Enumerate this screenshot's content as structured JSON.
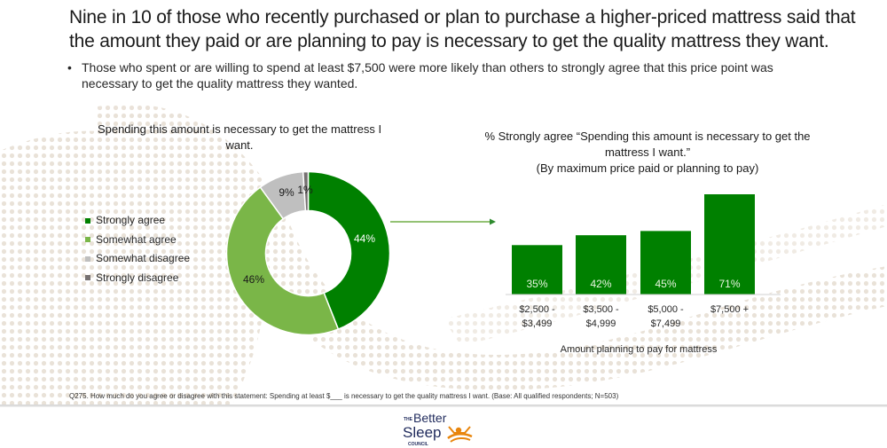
{
  "headline": "Nine in 10 of those who recently purchased or plan to purchase a higher-priced mattress said that the amount they paid or are planning to pay is necessary to get the quality mattress they want.",
  "bullet": "Those who spent or are willing to spend at least $7,500 were more likely than others to strongly agree that this price point was necessary to get the quality mattress they wanted.",
  "footnote": "Q275. How much do you agree or disagree with this statement: Spending at least $___ is necessary to get the quality mattress I want. (Base: All qualified respondents; N=503)",
  "logo": {
    "the": "THE",
    "better": "Better",
    "sleep": "Sleep",
    "council": "COUNCIL"
  },
  "colors": {
    "strongly_agree": "#008000",
    "somewhat_agree": "#7ab648",
    "somewhat_disagree": "#bfbfbf",
    "strongly_disagree": "#767171",
    "logo_navy": "#1f2a5c",
    "logo_orange": "#e8850c"
  },
  "chart_data": [
    {
      "type": "pie",
      "variant": "donut",
      "title": "Spending this amount is necessary to get the mattress I want.",
      "categories": [
        "Strongly agree",
        "Somewhat agree",
        "Somewhat disagree",
        "Strongly disagree"
      ],
      "values": [
        44,
        46,
        9,
        1
      ],
      "labels": [
        "44%",
        "46%",
        "9%",
        "1%"
      ],
      "legend_position": "left"
    },
    {
      "type": "bar",
      "title": "% Strongly agree “Spending this amount is necessary to get the mattress I want.”",
      "subtitle": "(By maximum price paid or planning to pay)",
      "categories": [
        "$2,500 - $3,499",
        "$3,500 - $4,999",
        "$5,000 - $7,499",
        "$7,500 +"
      ],
      "category_lines": [
        [
          "$2,500 -",
          "$3,499"
        ],
        [
          "$3,500 -",
          "$4,999"
        ],
        [
          "$5,000 -",
          "$7,499"
        ],
        [
          "$7,500 +",
          ""
        ]
      ],
      "values": [
        35,
        42,
        45,
        71
      ],
      "labels": [
        "35%",
        "42%",
        "45%",
        "71%"
      ],
      "xlabel": "Amount planning to pay for mattress",
      "ylabel": "",
      "ylim": [
        0,
        80
      ],
      "grid": false
    }
  ]
}
